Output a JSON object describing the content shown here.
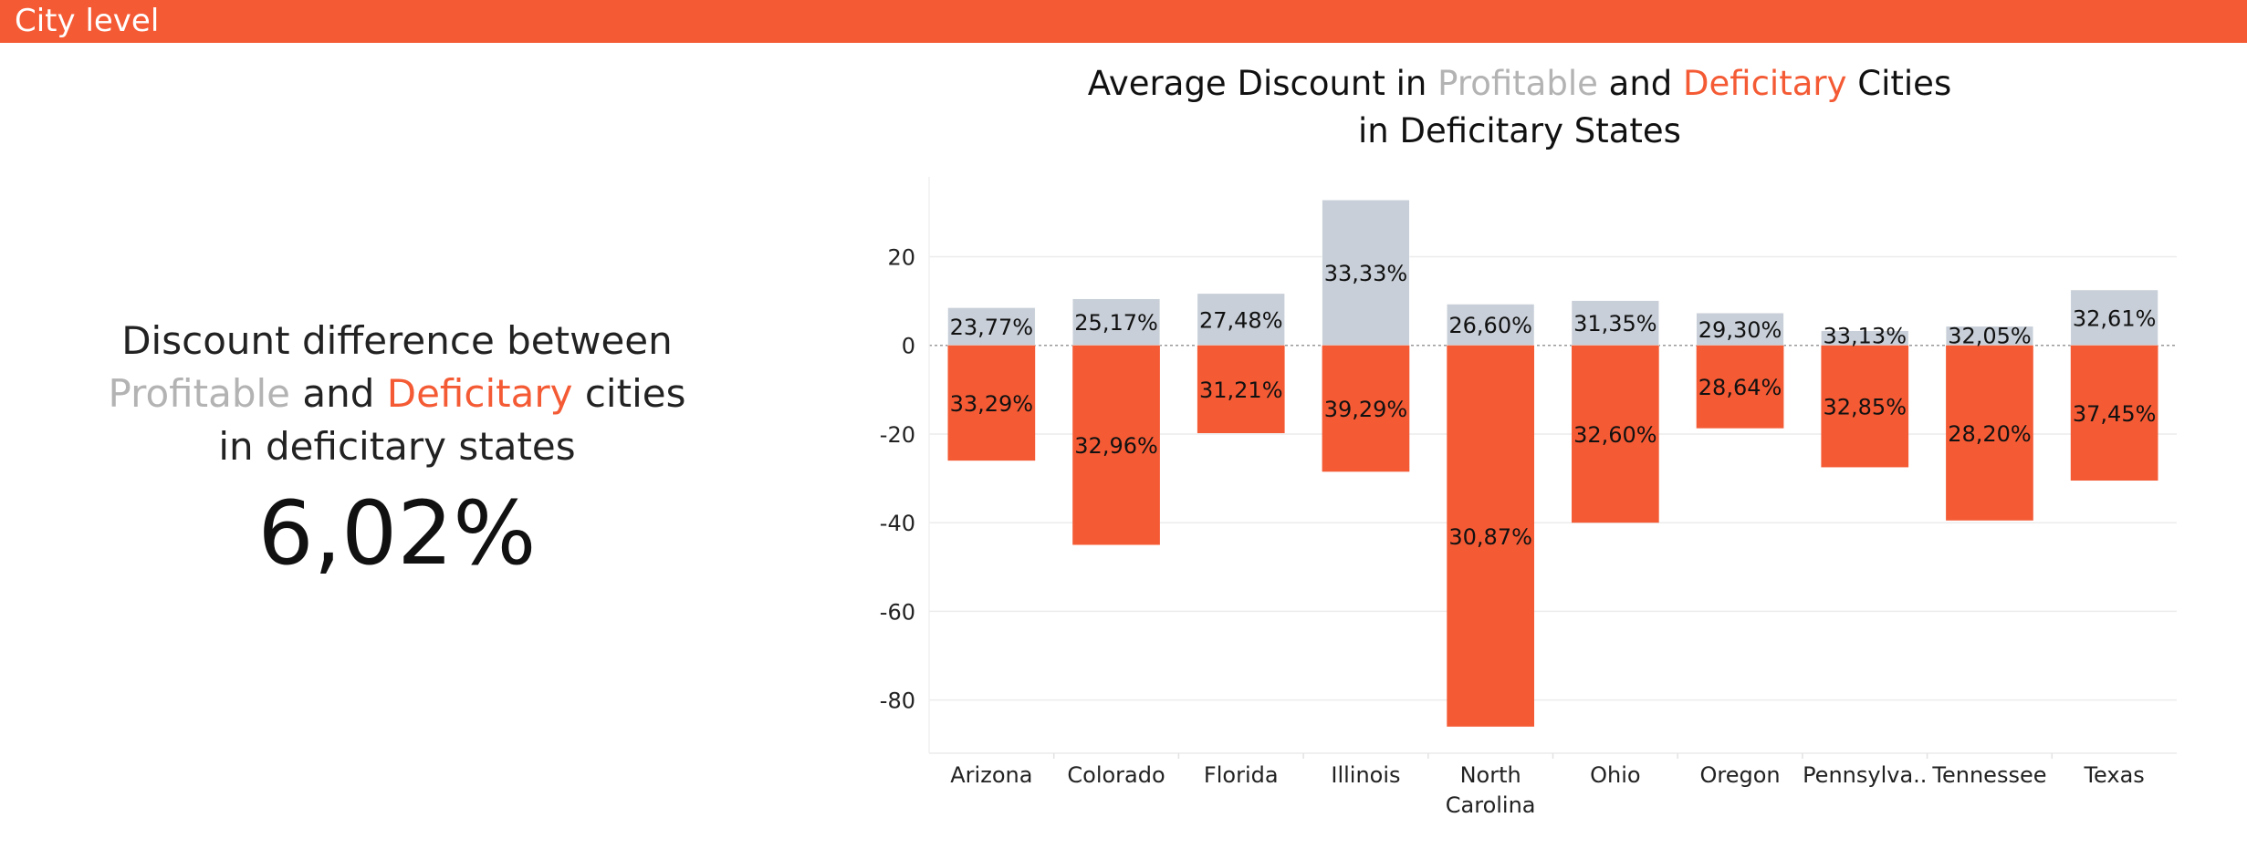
{
  "header": {
    "title": "City level",
    "color": "#f45b35"
  },
  "kpi": {
    "caption_line1": "Discount difference between",
    "caption_profitable": "Profitable",
    "caption_and": "and",
    "caption_deficitary": "Deficitary",
    "caption_cities": "cities",
    "caption_line3": "in deficitary states",
    "value": "6,02%"
  },
  "chart_title": {
    "part1": "Average Discount in",
    "profitable": "Profitable",
    "and": "and",
    "deficitary": "Deficitary",
    "part2": "Cities",
    "line2": "in Deficitary States"
  },
  "colors": {
    "profitable": "#c8cfd8",
    "deficitary": "#f45b35",
    "profitable_text": "#b3b3b3",
    "accent": "#f45b35"
  },
  "chart_data": {
    "type": "bar",
    "title": "Average Discount in Profitable and Deficitary Cities in Deficitary States",
    "xlabel": "",
    "ylabel": "",
    "ylim": [
      -92,
      38
    ],
    "yticks": [
      20,
      0,
      -20,
      -40,
      -60,
      -80
    ],
    "grid": true,
    "zero_line": "dotted",
    "categories": [
      [
        "Arizona"
      ],
      [
        "Colorado"
      ],
      [
        "Florida"
      ],
      [
        "Illinois"
      ],
      [
        "North",
        "Carolina"
      ],
      [
        "Ohio"
      ],
      [
        "Oregon"
      ],
      [
        "Pennsylva.."
      ],
      [
        "Tennessee"
      ],
      [
        "Texas"
      ]
    ],
    "series": [
      {
        "name": "Profitable",
        "values": [
          8.5,
          10.5,
          11.7,
          32.8,
          9.3,
          10.1,
          7.3,
          3.3,
          4.3,
          12.5
        ],
        "labels": [
          "23,77%",
          "25,17%",
          "27,48%",
          "33,33%",
          "26,60%",
          "31,35%",
          "29,30%",
          "33,13%",
          "32,05%",
          "32,61%"
        ]
      },
      {
        "name": "Deficitary",
        "values": [
          -26.0,
          -45.0,
          -19.8,
          -28.5,
          -86.0,
          -40.0,
          -18.7,
          -27.5,
          -39.5,
          -30.5
        ],
        "labels": [
          "33,29%",
          "32,96%",
          "31,21%",
          "39,29%",
          "30,87%",
          "32,60%",
          "28,64%",
          "32,85%",
          "28,20%",
          "37,45%"
        ]
      }
    ]
  }
}
